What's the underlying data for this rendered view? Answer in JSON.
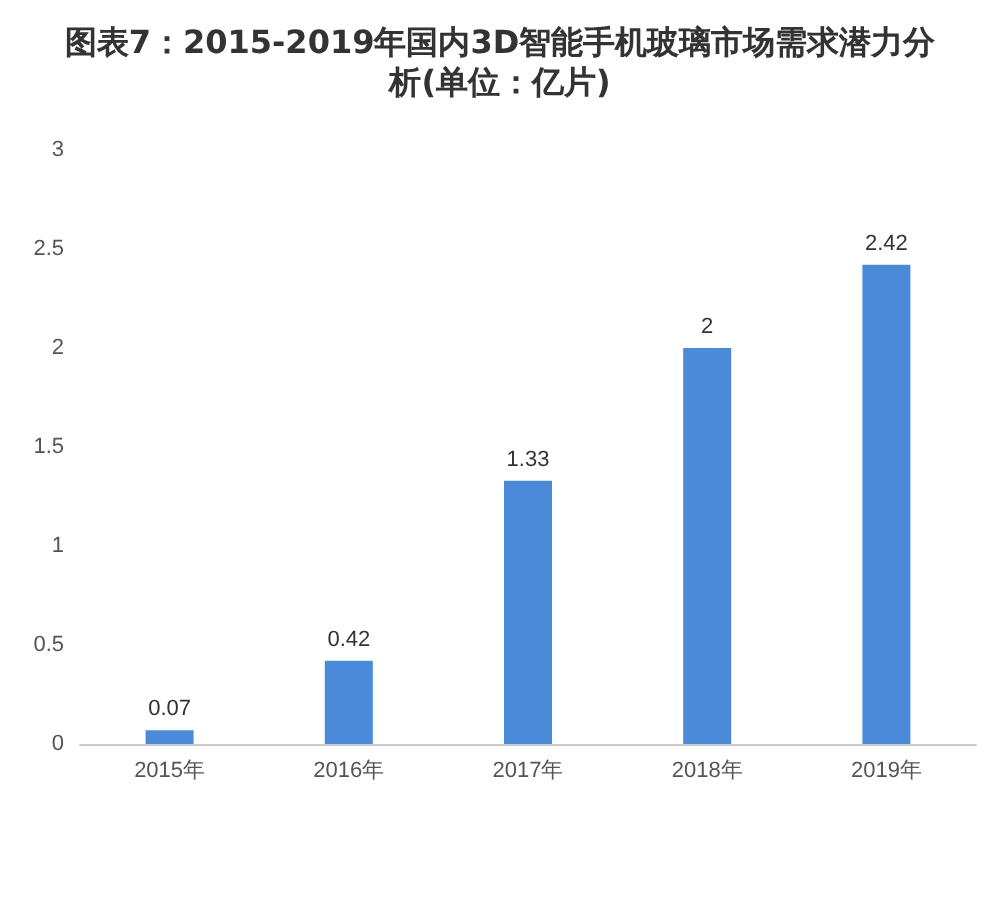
{
  "chart_data": {
    "type": "bar",
    "title": "图表7：2015-2019年国内3D智能手机玻璃市场需求潜力分析(单位：亿片)",
    "categories": [
      "2015年",
      "2016年",
      "2017年",
      "2018年",
      "2019年"
    ],
    "values": [
      0.07,
      0.42,
      1.33,
      2,
      2.42
    ],
    "color": "#4a8ad8",
    "ylim": [
      0,
      3
    ],
    "yticks": [
      0,
      0.5,
      1,
      1.5,
      2,
      2.5,
      3
    ],
    "grid": false,
    "data_labels": true
  }
}
